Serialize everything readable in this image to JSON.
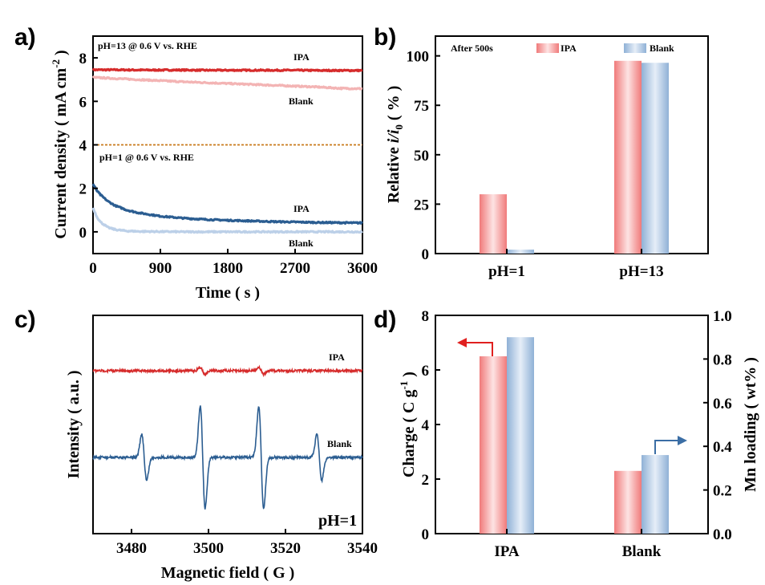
{
  "colors": {
    "ipa_red": "#d62c2c",
    "ipa_pink": "#f4a3a3",
    "blank_light_red": "#f3b4b4",
    "blank_navy": "#2b5d91",
    "blank_light_blue": "#bcd0e8",
    "bar_blue": "#9bb9d9",
    "divider": "#c87a1a",
    "arrow_red": "#e0201f",
    "arrow_blue": "#3b6ea5"
  },
  "panel_labels": [
    "a)",
    "b)",
    "c)",
    "d)"
  ],
  "chart_data": [
    {
      "id": "a",
      "type": "line",
      "xlabel": "Time ( s )",
      "ylabel": "Current density ( mA cm",
      "ylabel_sup": "-2",
      "ylabel_end": " )",
      "xlim": [
        0,
        3600
      ],
      "ylim": [
        -1,
        9
      ],
      "xticks": [
        0,
        900,
        1800,
        2700,
        3600
      ],
      "yticks": [
        0,
        2,
        4,
        6,
        8
      ],
      "divider_y": 4,
      "annotations": {
        "ph13": "pH=13 @ 0.6 V vs. RHE",
        "ph1": "pH=1 @ 0.6 V vs. RHE",
        "ipa_top": "IPA",
        "blank_top": "Blank",
        "ipa_bottom": "IPA",
        "blank_bottom": "Blank"
      },
      "series": [
        {
          "name": "IPA (pH=13)",
          "x": [
            0,
            300,
            600,
            900,
            1200,
            1500,
            1800,
            2100,
            2400,
            2700,
            3000,
            3300,
            3600
          ],
          "values": [
            7.45,
            7.45,
            7.44,
            7.44,
            7.44,
            7.43,
            7.43,
            7.43,
            7.43,
            7.43,
            7.42,
            7.42,
            7.42
          ]
        },
        {
          "name": "Blank (pH=13)",
          "x": [
            0,
            300,
            600,
            900,
            1200,
            1500,
            1800,
            2100,
            2400,
            2700,
            3000,
            3300,
            3600
          ],
          "values": [
            7.1,
            7.05,
            7.0,
            6.95,
            6.9,
            6.86,
            6.82,
            6.78,
            6.74,
            6.7,
            6.66,
            6.6,
            6.58
          ]
        },
        {
          "name": "IPA (pH=1)",
          "x": [
            0,
            50,
            100,
            200,
            300,
            450,
            600,
            900,
            1200,
            1500,
            1800,
            2100,
            2400,
            2700,
            3000,
            3300,
            3600
          ],
          "values": [
            2.2,
            1.9,
            1.7,
            1.4,
            1.2,
            1.0,
            0.88,
            0.72,
            0.63,
            0.57,
            0.53,
            0.5,
            0.47,
            0.45,
            0.43,
            0.42,
            0.41
          ]
        },
        {
          "name": "Blank (pH=1)",
          "x": [
            0,
            50,
            100,
            200,
            300,
            450,
            600,
            900,
            1200,
            1800,
            2700,
            3600
          ],
          "values": [
            1.1,
            0.7,
            0.45,
            0.2,
            0.1,
            0.04,
            0.02,
            0.01,
            0.0,
            0.0,
            0.0,
            0.0
          ]
        }
      ]
    },
    {
      "id": "b",
      "type": "bar",
      "ylabel": "Relative i/i0 ( % )",
      "ylabel_main": "Relative ",
      "ylabel_i": "i/i",
      "ylabel_sub": "0",
      "ylabel_end": " ( % )",
      "categories": [
        "pH=1",
        "pH=13"
      ],
      "ylim": [
        0,
        110
      ],
      "yticks": [
        0,
        25,
        50,
        75,
        100
      ],
      "annotation": "After 500s",
      "legend": [
        "IPA",
        "Blank"
      ],
      "series": [
        {
          "name": "IPA",
          "values": [
            30,
            97.5
          ]
        },
        {
          "name": "Blank",
          "values": [
            2,
            96.5
          ]
        }
      ]
    },
    {
      "id": "c",
      "type": "line",
      "xlabel": "Magnetic field ( G )",
      "ylabel": "Intensity ( a.u. )",
      "xlim": [
        3470,
        3540
      ],
      "xticks": [
        3480,
        3500,
        3520,
        3540
      ],
      "annotations": {
        "ipa": "IPA",
        "blank": "Blank",
        "ph": "pH=1"
      },
      "series": [
        {
          "name": "IPA",
          "peak_centers": [
            3498.5,
            3513.7
          ],
          "amplitude": 0.13
        },
        {
          "name": "Blank",
          "peak_centers": [
            3483.3,
            3498.5,
            3513.7,
            3528.8
          ],
          "amplitude": [
            0.85,
            1.9,
            1.9,
            0.85
          ]
        }
      ]
    },
    {
      "id": "d",
      "type": "bar",
      "ylabel_left": "Charge ( C g",
      "ylabel_left_sup": "-1",
      "ylabel_left_end": " )",
      "ylabel_right": "Mn loading ( wt% )",
      "categories": [
        "IPA",
        "Blank"
      ],
      "ylim_left": [
        0,
        8
      ],
      "yticks_left": [
        0,
        2,
        4,
        6,
        8
      ],
      "ylim_right": [
        0,
        1.0
      ],
      "yticks_right": [
        "0.0",
        "0.2",
        "0.4",
        "0.6",
        "0.8",
        "1.0"
      ],
      "series": [
        {
          "name": "Charge",
          "axis": "left",
          "values": [
            6.5,
            2.3
          ]
        },
        {
          "name": "Mn loading",
          "axis": "right",
          "values": [
            0.9,
            0.36
          ]
        }
      ]
    }
  ]
}
